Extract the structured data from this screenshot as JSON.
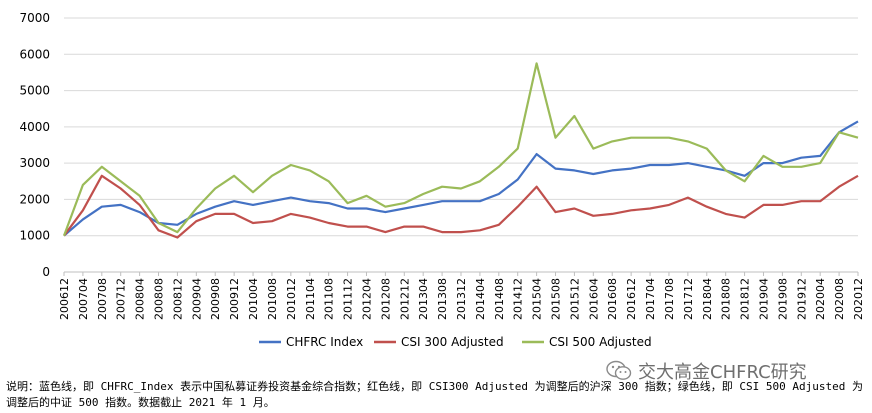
{
  "chart_data": {
    "type": "line",
    "title": "",
    "xlabel": "",
    "ylabel": "",
    "ylim": [
      0,
      7000
    ],
    "yticks": [
      0,
      1000,
      2000,
      3000,
      4000,
      5000,
      6000,
      7000
    ],
    "grid": "horizontal",
    "legend_position": "bottom",
    "x": [
      "200612",
      "200704",
      "200708",
      "200712",
      "200804",
      "200808",
      "200812",
      "200904",
      "200908",
      "200912",
      "201004",
      "201008",
      "201012",
      "201104",
      "201108",
      "201112",
      "201204",
      "201208",
      "201212",
      "201304",
      "201308",
      "201312",
      "201404",
      "201408",
      "201412",
      "201504",
      "201508",
      "201512",
      "201604",
      "201608",
      "201612",
      "201704",
      "201708",
      "201712",
      "201804",
      "201808",
      "201812",
      "201904",
      "201908",
      "201912",
      "202004",
      "202008",
      "202012"
    ],
    "series": [
      {
        "name": "CHFRC Index",
        "color": "#4472C4",
        "values": [
          1000,
          1450,
          1800,
          1850,
          1650,
          1350,
          1300,
          1600,
          1800,
          1950,
          1850,
          1950,
          2050,
          1950,
          1900,
          1750,
          1750,
          1650,
          1750,
          1850,
          1950,
          1950,
          1950,
          2150,
          2550,
          3250,
          2850,
          2800,
          2700,
          2800,
          2850,
          2950,
          2950,
          3000,
          2900,
          2800,
          2650,
          3000,
          3000,
          3150,
          3200,
          3850,
          4150
        ]
      },
      {
        "name": "CSI 300 Adjusted",
        "color": "#C0504D",
        "values": [
          1000,
          1700,
          2650,
          2300,
          1850,
          1150,
          950,
          1400,
          1600,
          1600,
          1350,
          1400,
          1600,
          1500,
          1350,
          1250,
          1250,
          1100,
          1250,
          1250,
          1100,
          1100,
          1150,
          1300,
          1800,
          2350,
          1650,
          1750,
          1550,
          1600,
          1700,
          1750,
          1850,
          2050,
          1800,
          1600,
          1500,
          1850,
          1850,
          1950,
          1950,
          2350,
          2650
        ]
      },
      {
        "name": "CSI 500 Adjusted",
        "color": "#9BBB59",
        "values": [
          1000,
          2400,
          2900,
          2500,
          2100,
          1350,
          1100,
          1750,
          2300,
          2650,
          2200,
          2650,
          2950,
          2800,
          2500,
          1900,
          2100,
          1800,
          1900,
          2150,
          2350,
          2300,
          2500,
          2900,
          3400,
          5750,
          3700,
          4300,
          3400,
          3600,
          3700,
          3700,
          3700,
          3600,
          3400,
          2800,
          2500,
          3200,
          2900,
          2900,
          3000,
          3850,
          3700
        ]
      }
    ]
  },
  "caption": "说明：蓝色线，即 CHFRC_Index 表示中国私募证券投资基金综合指数；红色线，即 CSI300 Adjusted 为调整后的沪深 300 指数；绿色线，即 CSI 500 Adjusted 为调整后的中证 500 指数。数据截止 2021 年 1 月。",
  "watermark": "交大高金CHFRC研究"
}
